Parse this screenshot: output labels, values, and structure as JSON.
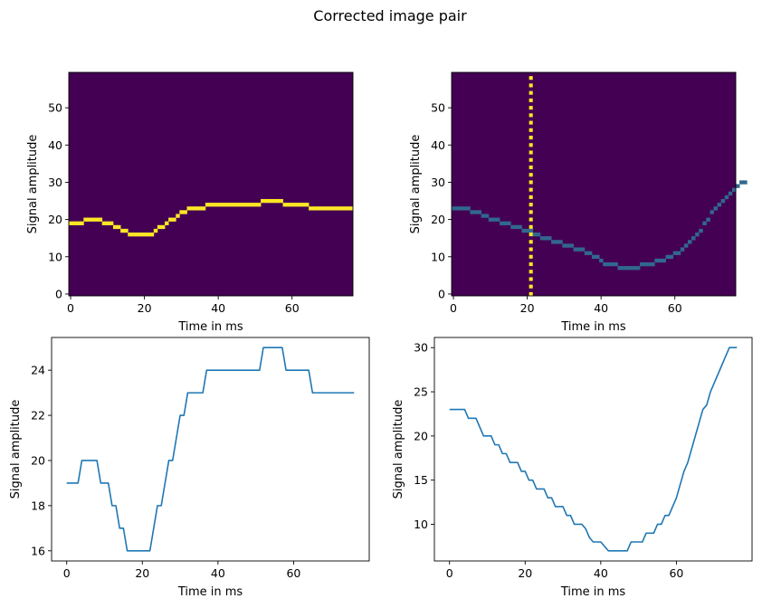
{
  "figure": {
    "title": "Corrected image pair"
  },
  "colors": {
    "background": "#440154",
    "highlight": "#fde725",
    "mid": "#31688e",
    "line": "#1f77b4"
  },
  "chart_data": [
    {
      "type": "heatmap",
      "xlabel": "Time in ms",
      "ylabel": "Signal amplitude",
      "xlim": [
        0,
        76
      ],
      "ylim": [
        0,
        59
      ],
      "xticks": [
        "0",
        "20",
        "40",
        "60"
      ],
      "yticks": [
        "0",
        "10",
        "20",
        "30",
        "40",
        "50"
      ],
      "mark_color": "highlight",
      "values": [
        19,
        19,
        19,
        19,
        20,
        20,
        20,
        20,
        20,
        19,
        19,
        19,
        18,
        18,
        17,
        17,
        16,
        16,
        16,
        16,
        16,
        16,
        16,
        17,
        18,
        18,
        19,
        20,
        20,
        21,
        22,
        22,
        23,
        23,
        23,
        23,
        23,
        24,
        24,
        24,
        24,
        24,
        24,
        24,
        24,
        24,
        24,
        24,
        24,
        24,
        24,
        24,
        25,
        25,
        25,
        25,
        25,
        25,
        24,
        24,
        24,
        24,
        24,
        24,
        24,
        23,
        23,
        23,
        23,
        23,
        23,
        23,
        23,
        23,
        23,
        23,
        23
      ]
    },
    {
      "type": "heatmap",
      "xlabel": "Time in ms",
      "ylabel": "Signal amplitude",
      "xlim": [
        0,
        76
      ],
      "ylim": [
        0,
        59
      ],
      "xticks": [
        "0",
        "20",
        "40",
        "60"
      ],
      "yticks": [
        "0",
        "10",
        "20",
        "30",
        "40",
        "50"
      ],
      "mark_color": "mid",
      "vertical_marker_time": 21,
      "values": [
        23,
        23,
        23,
        23,
        23,
        22,
        22,
        22,
        21,
        21,
        20,
        20,
        20,
        19,
        19,
        19,
        18,
        18,
        18,
        17,
        17,
        17,
        16,
        16,
        15,
        15,
        15,
        14,
        14,
        14,
        13,
        13,
        13,
        12,
        12,
        12,
        11,
        11,
        10,
        10,
        9,
        8,
        8,
        8,
        8,
        7,
        7,
        7,
        7,
        7,
        7,
        8,
        8,
        8,
        8,
        9,
        9,
        9,
        10,
        10,
        11,
        11,
        12,
        13,
        14,
        15,
        16,
        17,
        19,
        20,
        22,
        23,
        24,
        25,
        26,
        27,
        28,
        29,
        30,
        30
      ]
    },
    {
      "type": "line",
      "xlabel": "Time in ms",
      "ylabel": "Signal amplitude",
      "xlim": [
        -4,
        80
      ],
      "ylim": [
        15.55,
        25.45
      ],
      "xticks": [
        "0",
        "20",
        "40",
        "60"
      ],
      "yticks": [
        "16",
        "18",
        "20",
        "22",
        "24"
      ],
      "series": [
        {
          "x": [
            0,
            1,
            2,
            3,
            4,
            5,
            6,
            7,
            8,
            9,
            10,
            11,
            12,
            13,
            14,
            15,
            16,
            17,
            18,
            19,
            20,
            21,
            22,
            23,
            24,
            25,
            26,
            27,
            28,
            29,
            30,
            31,
            32,
            33,
            34,
            35,
            36,
            37,
            38,
            39,
            40,
            41,
            42,
            43,
            44,
            45,
            46,
            47,
            48,
            49,
            50,
            51,
            52,
            53,
            54,
            55,
            56,
            57,
            58,
            59,
            60,
            61,
            62,
            63,
            64,
            65,
            66,
            67,
            68,
            69,
            70,
            71,
            72,
            73,
            74,
            75,
            76
          ],
          "values": [
            19,
            19,
            19,
            19,
            20,
            20,
            20,
            20,
            20,
            19,
            19,
            19,
            18,
            18,
            17,
            17,
            16,
            16,
            16,
            16,
            16,
            16,
            16,
            17,
            18,
            18,
            19,
            20,
            20,
            21,
            22,
            22,
            23,
            23,
            23,
            23,
            23,
            24,
            24,
            24,
            24,
            24,
            24,
            24,
            24,
            24,
            24,
            24,
            24,
            24,
            24,
            24,
            25,
            25,
            25,
            25,
            25,
            25,
            24,
            24,
            24,
            24,
            24,
            24,
            24,
            23,
            23,
            23,
            23,
            23,
            23,
            23,
            23,
            23,
            23,
            23,
            23
          ]
        }
      ]
    },
    {
      "type": "line",
      "xlabel": "Time in ms",
      "ylabel": "Signal amplitude",
      "xlim": [
        -4,
        80
      ],
      "ylim": [
        5.85,
        31.15
      ],
      "xticks": [
        "0",
        "20",
        "40",
        "60"
      ],
      "yticks": [
        "10",
        "15",
        "20",
        "25",
        "30"
      ],
      "series": [
        {
          "x": [
            0,
            1,
            2,
            3,
            4,
            5,
            6,
            7,
            8,
            9,
            10,
            11,
            12,
            13,
            14,
            15,
            16,
            17,
            18,
            19,
            20,
            21,
            22,
            23,
            24,
            25,
            26,
            27,
            28,
            29,
            30,
            31,
            32,
            33,
            34,
            35,
            36,
            37,
            38,
            39,
            40,
            41,
            42,
            43,
            44,
            45,
            46,
            47,
            48,
            49,
            50,
            51,
            52,
            53,
            54,
            55,
            56,
            57,
            58,
            59,
            60,
            61,
            62,
            63,
            64,
            65,
            66,
            67,
            68,
            69,
            70,
            71,
            72,
            73,
            74,
            75,
            76
          ],
          "values": [
            23,
            23,
            23,
            23,
            23,
            22,
            22,
            22,
            21,
            20,
            20,
            20,
            19,
            19,
            18,
            18,
            17,
            17,
            17,
            16,
            16,
            15,
            15,
            14,
            14,
            14,
            13,
            13,
            12,
            12,
            12,
            11,
            11,
            10,
            10,
            10,
            9.5,
            8.5,
            8,
            8,
            8,
            7.5,
            7,
            7,
            7,
            7,
            7,
            7,
            8,
            8,
            8,
            8,
            9,
            9,
            9,
            10,
            10,
            11,
            11,
            12,
            13,
            14.5,
            16,
            17,
            18.5,
            20,
            21.5,
            23,
            23.5,
            25,
            26,
            27,
            28,
            29,
            30,
            30,
            30
          ]
        }
      ]
    }
  ]
}
